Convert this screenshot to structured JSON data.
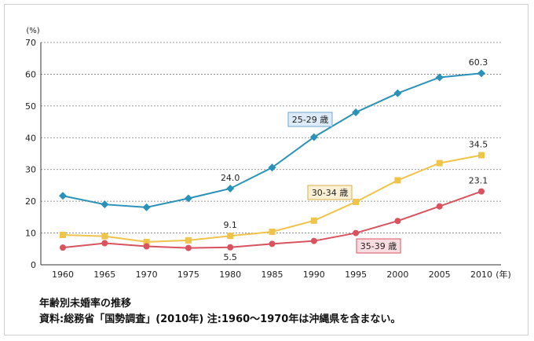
{
  "chart_data": {
    "type": "line",
    "y_unit_label": "(%)",
    "x_unit_label": "(年)",
    "ylim": [
      0,
      70
    ],
    "yticks": [
      0,
      10,
      20,
      30,
      40,
      50,
      60,
      70
    ],
    "grid": "horizontal dotted",
    "categories": [
      "1960",
      "1965",
      "1970",
      "1975",
      "1980",
      "1985",
      "1990",
      "1995",
      "2000",
      "2005",
      "2010"
    ],
    "series": [
      {
        "name": "25-29 歳",
        "color": "#2a92b8",
        "marker": "diamond",
        "values": [
          21.7,
          19.0,
          18.1,
          20.9,
          24.0,
          30.6,
          40.2,
          48.0,
          54.0,
          59.0,
          60.3
        ],
        "point_labels": {
          "4": "24.0",
          "10": "60.3"
        }
      },
      {
        "name": "30-34 歳",
        "color": "#f0c34a",
        "marker": "square",
        "values": [
          9.4,
          9.0,
          7.2,
          7.7,
          9.1,
          10.4,
          13.9,
          19.8,
          26.6,
          32.0,
          34.5
        ],
        "point_labels": {
          "4": "9.1",
          "10": "34.5"
        }
      },
      {
        "name": "35-39 歳",
        "color": "#d9535f",
        "marker": "circle",
        "values": [
          5.4,
          6.8,
          5.8,
          5.3,
          5.5,
          6.6,
          7.5,
          10.0,
          13.8,
          18.4,
          23.1
        ],
        "point_labels": {
          "4": "5.5",
          "10": "23.1"
        }
      }
    ]
  },
  "caption": {
    "title": "年齢別未婚率の推移",
    "source": "資料:総務省「国勢調査」(2010年) 注:1960～1970年は沖縄県を含まない。"
  },
  "series_label_styles": [
    {
      "bg": "#dcebf7",
      "border": "#6fa8d6"
    },
    {
      "bg": "#fbf0d3",
      "border": "#d8b04a"
    },
    {
      "bg": "#f9dcdf",
      "border": "#d9535f"
    }
  ]
}
